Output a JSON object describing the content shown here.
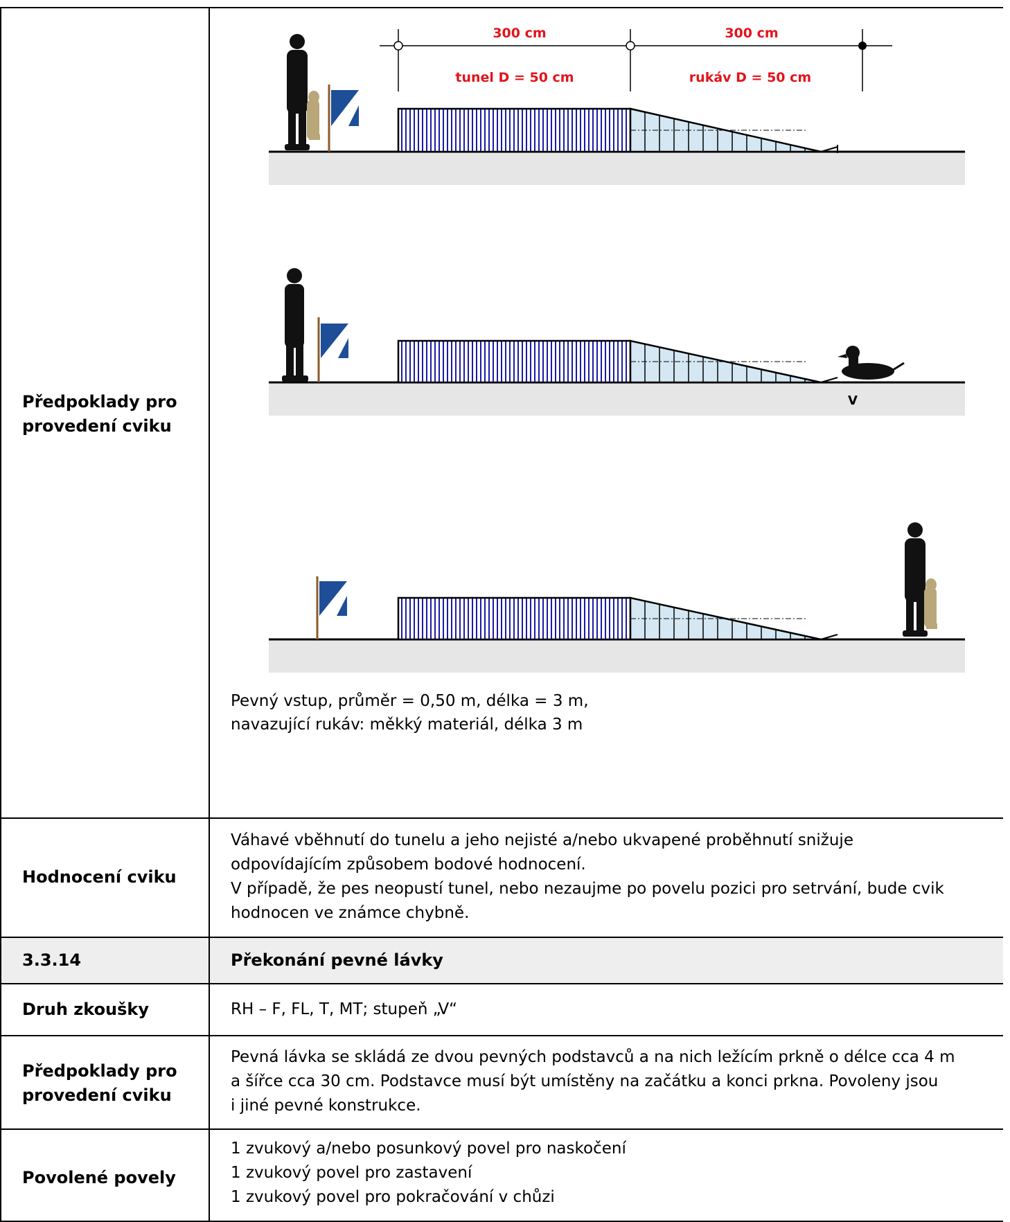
{
  "rows": [
    {
      "label_lines": [
        "Předpoklady pro",
        "provedení cviku"
      ],
      "diagram": {
        "dim_left": "300 cm",
        "dim_right": "300 cm",
        "label_tunnel": "tunel D = 50 cm",
        "label_sleeve": "rukáv D = 50 cm",
        "marker_v": "V"
      },
      "text_lines": [
        "Pevný vstup, průměr = 0,50 m, délka = 3 m,",
        "navazující rukáv: měkký materiál, délka 3 m"
      ]
    },
    {
      "label": "Hodnocení cviku",
      "text_lines": [
        "Váhavé vběhnutí do tunelu a jeho nejisté a/nebo ukvapené proběhnutí snižuje",
        "odpovídajícím způsobem bodové hodnocení.",
        "V případě, že pes neopustí tunel, nebo nezaujme po povelu pozici pro setrvání, bude cvik",
        "hodnocen ve známce chybně."
      ]
    },
    {
      "number": "3.3.14",
      "title": "Překonání pevné lávky"
    },
    {
      "label": "Druh zkoušky",
      "text": "RH – F, FL, T, MT; stupeň „V“"
    },
    {
      "label_lines": [
        "Předpoklady pro",
        "provedení cviku"
      ],
      "text_lines": [
        "Pevná lávka se skládá ze dvou pevných podstavců a na nich ležícím prkně o délce cca 4 m",
        "a šířce cca 30 cm. Podstavce musí být umístěny na začátku a konci prkna. Povoleny jsou",
        "i jiné pevné konstrukce."
      ]
    },
    {
      "label": "Povolené povely",
      "text_lines": [
        "1 zvukový a/nebo posunkový povel pro naskočení",
        "1 zvukový povel pro zastavení",
        "1 zvukový povel pro pokračování v chůzi"
      ]
    }
  ],
  "colors": {
    "dimension_text": "#e3141b",
    "tunnel_stripes": "#1a1aa6",
    "sleeve_fill": "#d4e7f3",
    "ground": "#e6e6e6",
    "flag_blue": "#1f4e98"
  }
}
